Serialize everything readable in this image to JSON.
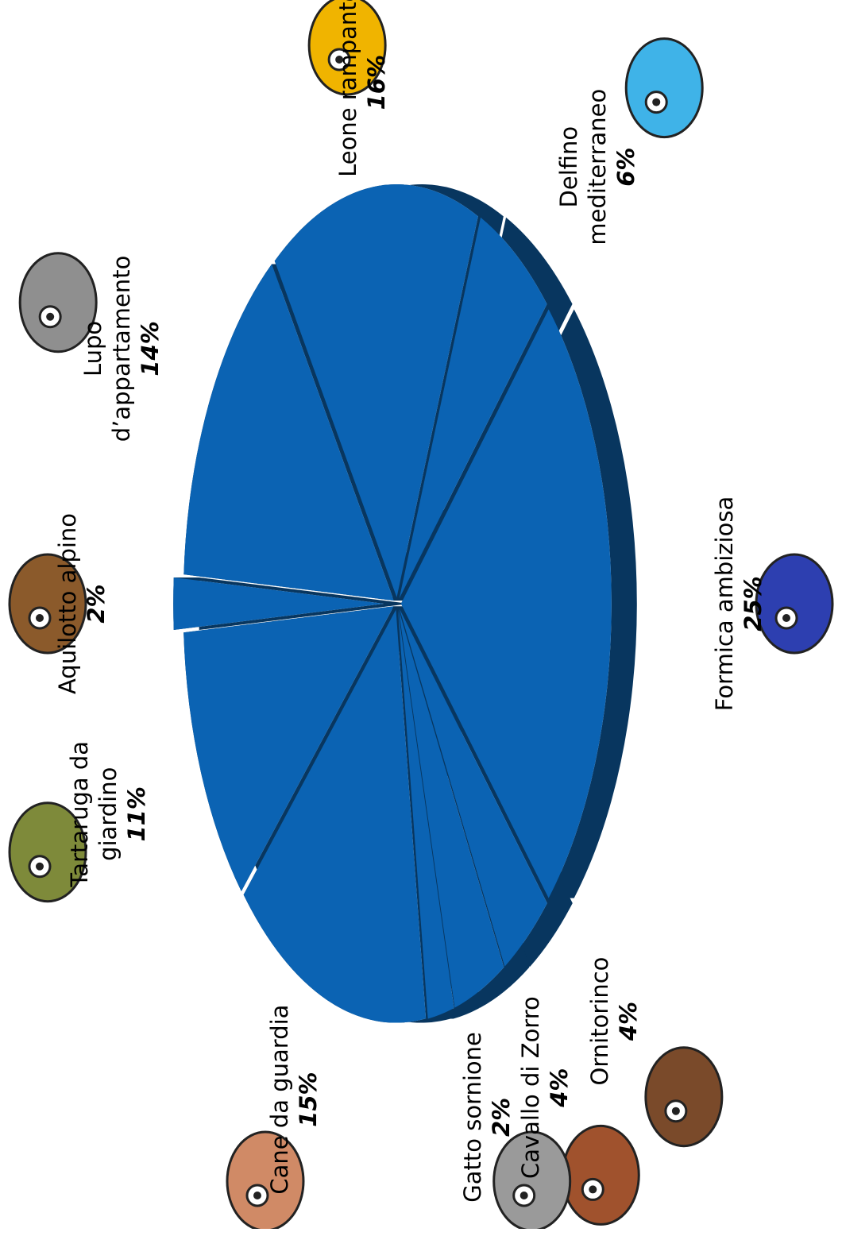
{
  "chart_data": {
    "type": "pie",
    "color": "#0b63b3",
    "categories": [
      "Aquilotto alpino",
      "Lupo d’appartamento",
      "Leone rampante",
      "Delfino mediterraneo",
      "Formica ambiziosa",
      "Ornitorinco",
      "Cavallo di Zorro",
      "Gatto sornione",
      "Cane da guardia",
      "Tartaruga da giardino"
    ],
    "values": [
      2,
      14,
      16,
      6,
      25,
      4,
      4,
      2,
      15,
      11
    ],
    "value_labels": [
      "2%",
      "14%",
      "16%",
      "6%",
      "25%",
      "4%",
      "4%",
      "2%",
      "15%",
      "11%"
    ]
  }
}
